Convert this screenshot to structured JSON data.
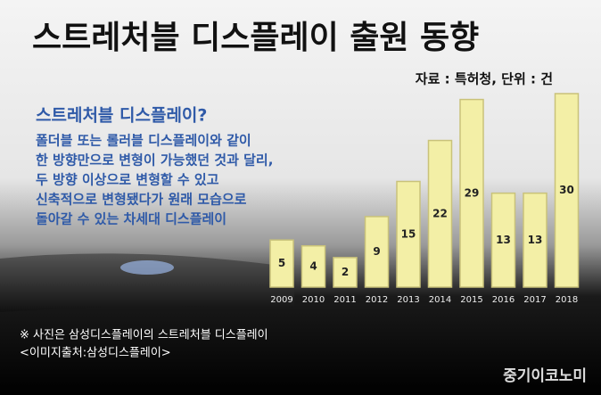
{
  "chart_data": {
    "type": "bar",
    "title": "스트레처블 디스플레이 출원 동향",
    "subtitle": "자료 : 특허청, 단위 : 건",
    "categories": [
      "2009",
      "2010",
      "2011",
      "2012",
      "2013",
      "2014",
      "2015",
      "2016",
      "2017",
      "2018"
    ],
    "values": [
      5,
      4,
      2,
      9,
      15,
      22,
      29,
      13,
      13,
      30
    ],
    "color": "#f3efa6"
  },
  "description": {
    "heading": "스트레처블 디스플레이?",
    "lines": [
      "폴더블 또는 롤러블 디스플레이와 같이",
      "한 방향만으로 변형이 가능했던 것과 달리,",
      "두 방향 이상으로 변형할 수 있고",
      "신축적으로 변형됐다가 원래 모습으로",
      "돌아갈 수 있는 차세대 디스플레이"
    ]
  },
  "footer": {
    "note": "※ 사진은 삼성디스플레이의 스트레처블 디스플레이",
    "credit": "<이미지출처:삼성디스플레이>",
    "logo": "중기이코노미"
  }
}
